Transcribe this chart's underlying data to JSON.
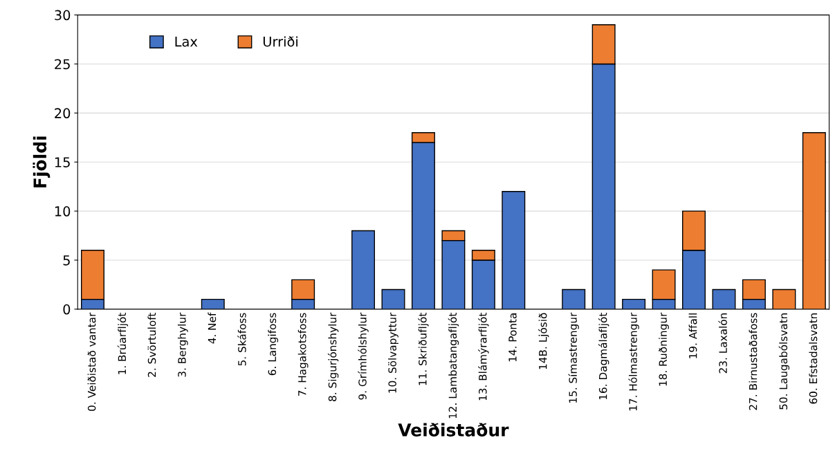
{
  "chart_data": {
    "type": "bar",
    "stacked": true,
    "xlabel": "Veiðistaður",
    "ylabel": "Fjöldi",
    "categories": [
      "0. Veiðistað vantar",
      "1. Brúarfljót",
      "2. Svörtuloft",
      "3. Berghylur",
      "4. Nef",
      "5. Skáfoss",
      "6. Langifoss",
      "7. Hagakotsfoss",
      "8. Sigurjónshylur",
      "9. Grímhólshylur",
      "10. Sölvapyttur",
      "11. Skriðufljót",
      "12. Lambatangafljót",
      "13. Blámýrarfljót",
      "14. Ponta",
      "14B. Ljósið",
      "15. Símastrengur",
      "16. Dagmálafljót",
      "17. Hólmastrengur",
      "18. Ruðningur",
      "19. Affall",
      "23. Laxalón",
      "27. Birnustaðafoss",
      "50. Laugabólsvatn",
      "60. Efstadalsvatn"
    ],
    "series": [
      {
        "name": "Lax",
        "color": "#4472c4",
        "values": [
          1,
          0,
          0,
          0,
          1,
          0,
          0,
          1,
          0,
          8,
          2,
          17,
          7,
          5,
          12,
          0,
          2,
          25,
          1,
          1,
          6,
          2,
          1,
          0,
          0
        ]
      },
      {
        "name": "Urriði",
        "color": "#ed7d31",
        "values": [
          5,
          0,
          0,
          0,
          0,
          0,
          0,
          2,
          0,
          0,
          0,
          1,
          1,
          1,
          0,
          0,
          0,
          4,
          0,
          3,
          4,
          0,
          2,
          2,
          18
        ]
      }
    ],
    "ylim": [
      0,
      30
    ],
    "yticks": [
      0,
      5,
      10,
      15,
      20,
      25,
      30
    ],
    "grid": "y",
    "legend": "top left"
  }
}
